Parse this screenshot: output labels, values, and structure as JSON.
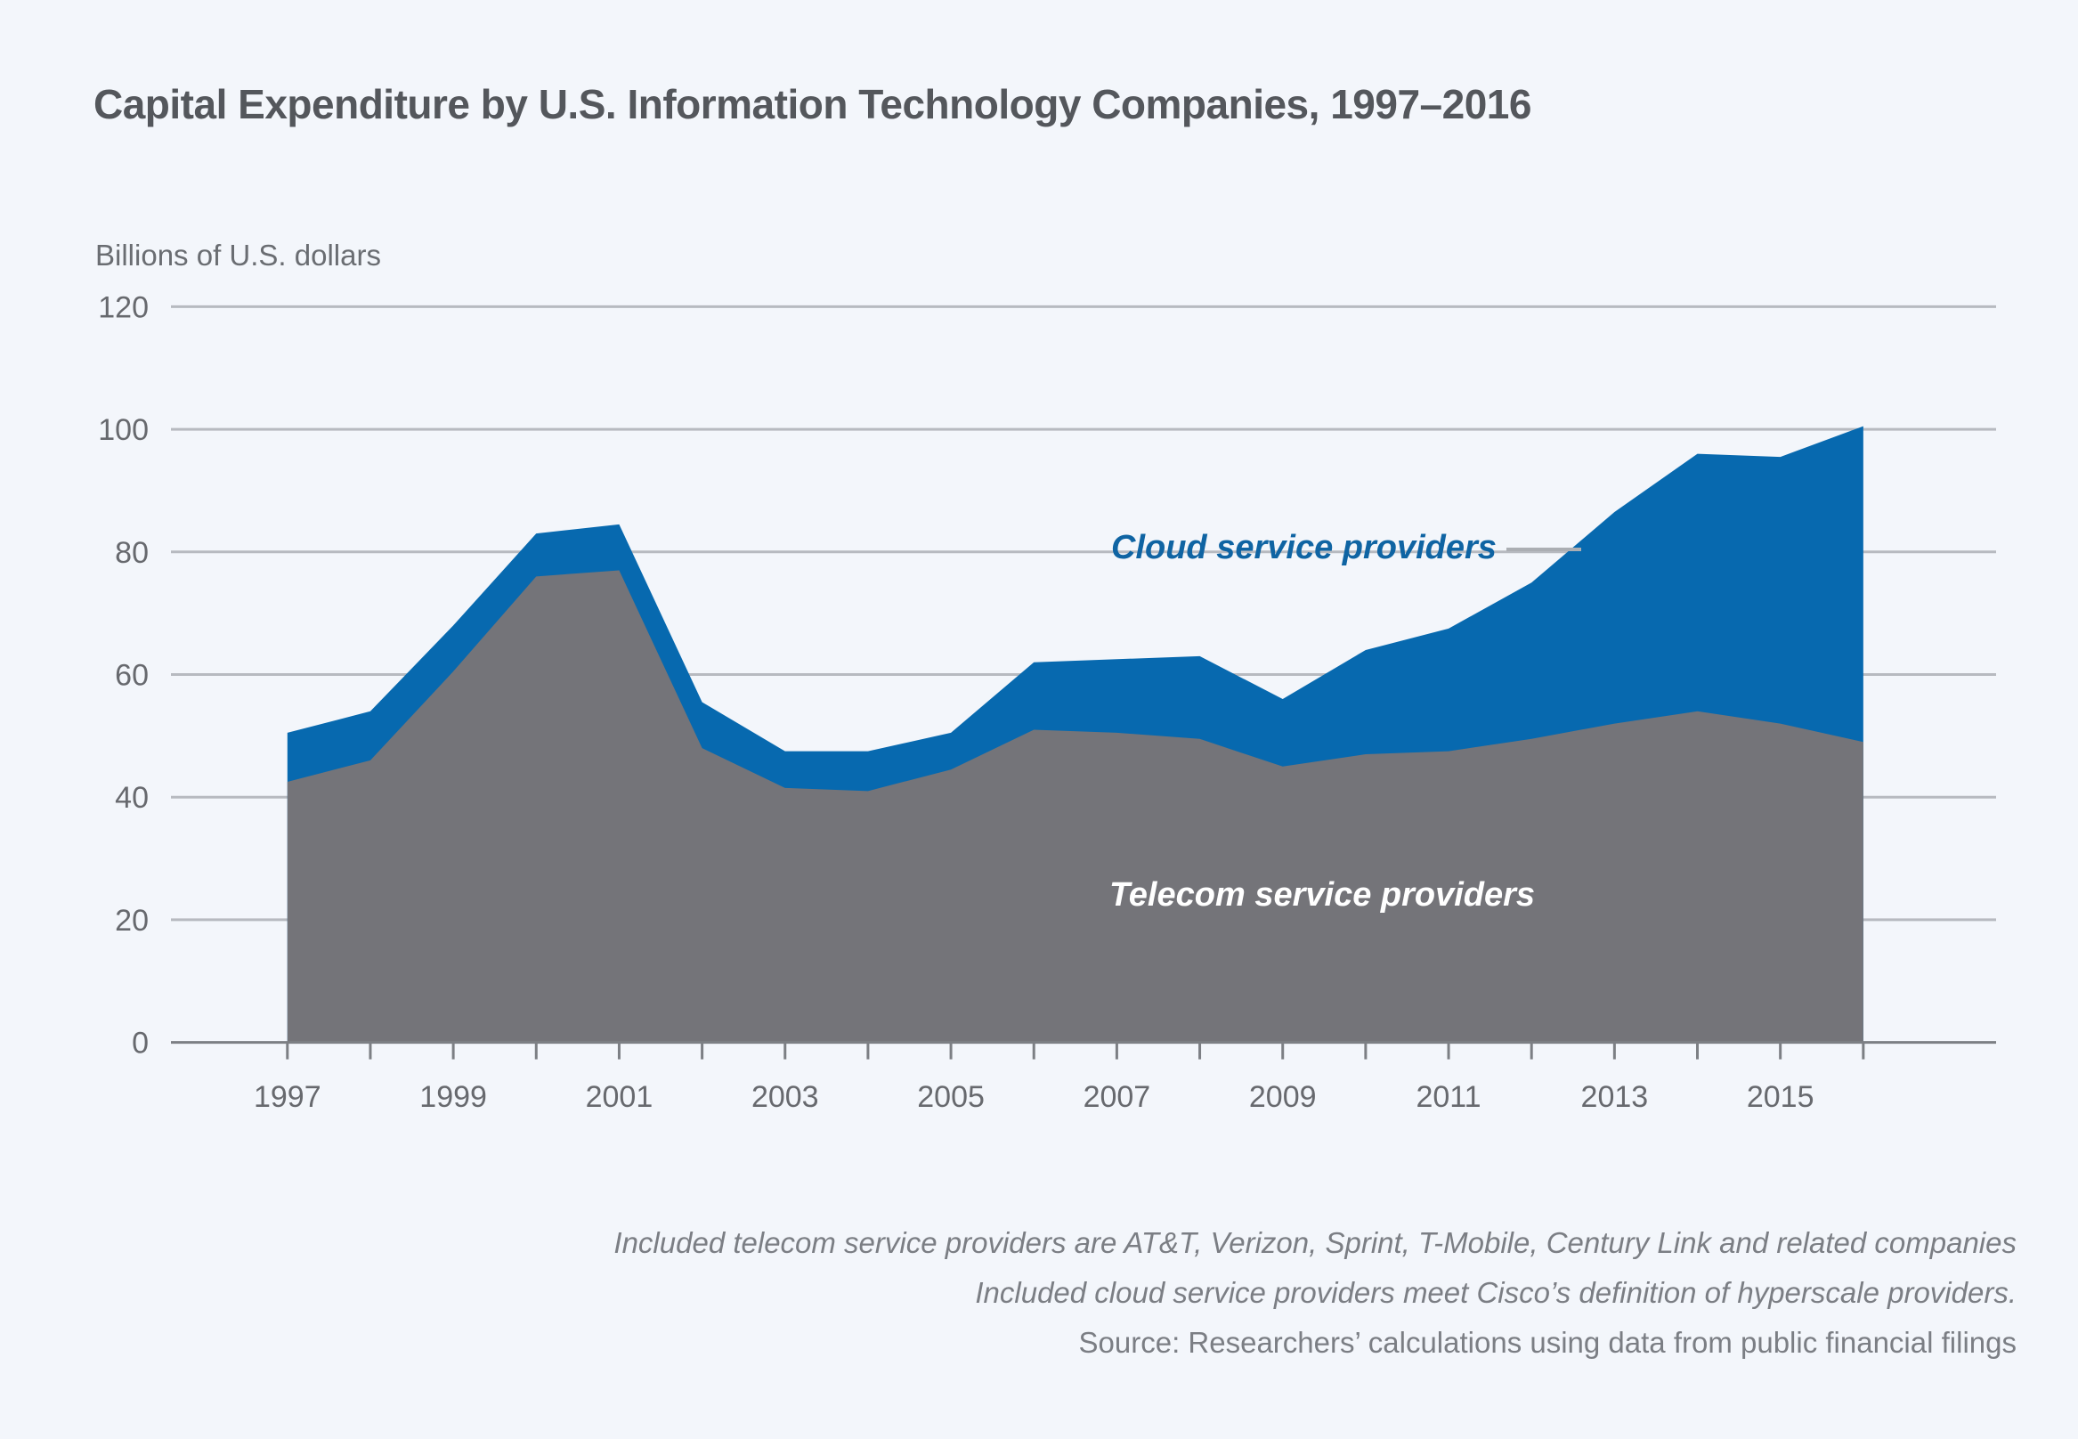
{
  "header": {
    "title": "Capital Expenditure by U.S. Information Technology Companies, 1997–2016"
  },
  "chart": {
    "y_axis_title": "Billions of U.S. dollars",
    "y_ticks": [
      120,
      100,
      80,
      60,
      40,
      20,
      0
    ],
    "x_tick_labels": [
      1997,
      1999,
      2001,
      2003,
      2005,
      2007,
      2009,
      2011,
      2013,
      2015
    ],
    "labels": {
      "cloud": "Cloud service providers",
      "telecom": "Telecom service providers"
    },
    "colors": {
      "background": "#f3f6fb",
      "cloud_area": "#0769af",
      "telecom_area": "#747479",
      "cloud_label_text": "#0f64a3",
      "telecom_label_text": "#ffffff",
      "gridline": "#b7bac0",
      "axis_line": "#7c7f84",
      "axis_text": "#67696e",
      "title_text": "#54575c",
      "footer_text": "#7b7e84"
    }
  },
  "chart_data": {
    "type": "area",
    "stacked": true,
    "title": "Capital Expenditure by U.S. Information Technology Companies, 1997–2016",
    "ylabel": "Billions of U.S. dollars",
    "ylim": [
      0,
      120
    ],
    "grid": "horizontal",
    "legend_position": "annotations-on-chart",
    "x": [
      1997,
      1998,
      1999,
      2000,
      2001,
      2002,
      2003,
      2004,
      2005,
      2006,
      2007,
      2008,
      2009,
      2010,
      2011,
      2012,
      2013,
      2014,
      2015,
      2016
    ],
    "series": [
      {
        "name": "Telecom service providers",
        "color": "#747479",
        "values": [
          42.5,
          46,
          60.5,
          76,
          77,
          48,
          41.5,
          41,
          44.5,
          51,
          50.5,
          49.5,
          45,
          47,
          47.5,
          49.5,
          52,
          54,
          52,
          49
        ]
      },
      {
        "name": "Cloud service providers",
        "color": "#0769af",
        "values": [
          8,
          8,
          7.5,
          7,
          7.5,
          7.5,
          6,
          6.5,
          6,
          11,
          12,
          13.5,
          11,
          17,
          20,
          25.5,
          34.5,
          42,
          43.5,
          51.5
        ]
      }
    ],
    "stacked_totals": [
      50.5,
      54,
      68,
      83,
      84.5,
      55.5,
      47.5,
      47.5,
      50.5,
      62,
      62.5,
      63,
      56,
      64,
      67.5,
      75,
      86.5,
      96,
      95.5,
      100.5
    ]
  },
  "footer": {
    "lines": [
      "Included telecom service providers are AT&T, Verizon, Sprint, T-Mobile, Century Link and related companies",
      "Included cloud service providers meet Cisco’s definition of hyperscale providers.",
      "Source: Researchers’ calculations using data from public financial filings"
    ]
  }
}
